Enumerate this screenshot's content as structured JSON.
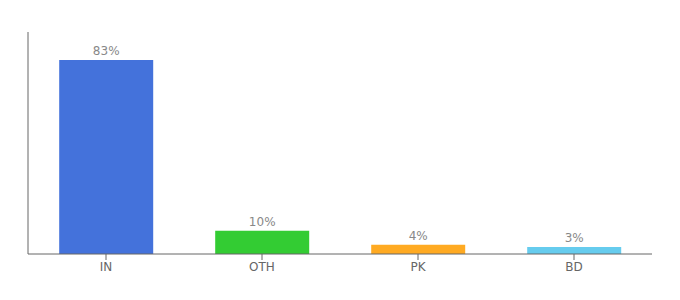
{
  "chart_data": {
    "type": "bar",
    "categories": [
      "IN",
      "OTH",
      "PK",
      "BD"
    ],
    "values": [
      83,
      10,
      4,
      3
    ],
    "value_labels": [
      "83%",
      "10%",
      "4%",
      "3%"
    ],
    "data_labels": true,
    "colors": [
      "#4472db",
      "#33cc33",
      "#ffaa22",
      "#66ccee"
    ],
    "ylim": [
      0,
      95
    ],
    "grid": false,
    "tick_labels": "x"
  }
}
